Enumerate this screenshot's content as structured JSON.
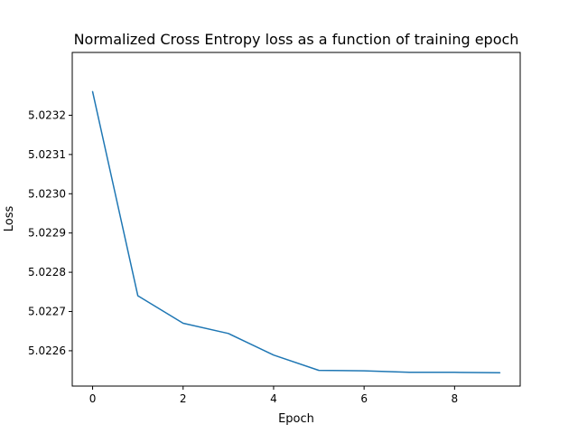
{
  "chart_data": {
    "type": "line",
    "title": "Normalized Cross Entropy loss as a function of training epoch",
    "xlabel": "Epoch",
    "ylabel": "Loss",
    "xlim": [
      -0.45,
      9.45
    ],
    "ylim": [
      5.02251,
      5.02336
    ],
    "x_ticks": [
      0,
      2,
      4,
      6,
      8
    ],
    "y_ticks": [
      5.0226,
      5.0227,
      5.0228,
      5.0229,
      5.023,
      5.0231,
      5.0232
    ],
    "x_tick_labels": [
      "0",
      "2",
      "4",
      "6",
      "8"
    ],
    "y_tick_labels": [
      "5.0226",
      "5.0227",
      "5.0228",
      "5.0229",
      "5.0230",
      "5.0231",
      "5.0232"
    ],
    "grid": false,
    "series": [
      {
        "color": "#1f77b4",
        "x": [
          0,
          1,
          2,
          3,
          4,
          5,
          6,
          7,
          8,
          9
        ],
        "y": [
          5.02326,
          5.02274,
          5.02267,
          5.022644,
          5.022589,
          5.02255,
          5.022549,
          5.022545,
          5.022545,
          5.022544
        ]
      }
    ]
  }
}
